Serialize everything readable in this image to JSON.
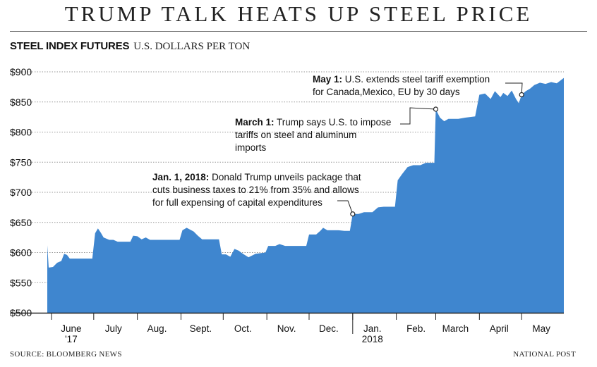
{
  "title": "TRUMP TALK HEATS UP STEEL PRICE",
  "subtitle": "STEEL INDEX FUTURES",
  "unit": "U.S. DOLLARS PER TON",
  "source": "SOURCE: BLOOMBERG NEWS",
  "credit": "NATIONAL POST",
  "colors": {
    "area": "#3f86cf",
    "axis": "#222222",
    "grid": "#999999"
  },
  "chart_data": {
    "type": "area",
    "title": "TRUMP TALK HEATS UP STEEL PRICE",
    "ylabel": "U.S. DOLLARS PER TON",
    "ylim": [
      500,
      900
    ],
    "yticks": [
      500,
      550,
      600,
      650,
      700,
      750,
      800,
      850,
      900
    ],
    "ytick_labels": [
      "$500",
      "$550",
      "$600",
      "$650",
      "$700",
      "$750",
      "$800",
      "$850",
      "$900"
    ],
    "xlim": [
      "2017-05-29",
      "2018-05-31"
    ],
    "month_labels": [
      {
        "date": "2017-06-15",
        "label": "June",
        "sub": "'17"
      },
      {
        "date": "2017-07-15",
        "label": "July"
      },
      {
        "date": "2017-08-15",
        "label": "Aug."
      },
      {
        "date": "2017-09-15",
        "label": "Sept."
      },
      {
        "date": "2017-10-15",
        "label": "Oct."
      },
      {
        "date": "2017-11-15",
        "label": "Nov."
      },
      {
        "date": "2017-12-15",
        "label": "Dec."
      },
      {
        "date": "2018-01-15",
        "label": "Jan.",
        "sub": "2018"
      },
      {
        "date": "2018-02-15",
        "label": "Feb."
      },
      {
        "date": "2018-03-15",
        "label": "March"
      },
      {
        "date": "2018-04-15",
        "label": "April"
      },
      {
        "date": "2018-05-15",
        "label": "May"
      }
    ],
    "grid": true,
    "series": [
      {
        "points": [
          [
            "2017-05-29",
            612
          ],
          [
            "2017-05-30",
            575
          ],
          [
            "2017-06-02",
            576
          ],
          [
            "2017-06-05",
            583
          ],
          [
            "2017-06-08",
            586
          ],
          [
            "2017-06-10",
            598
          ],
          [
            "2017-06-12",
            596
          ],
          [
            "2017-06-14",
            590
          ],
          [
            "2017-06-30",
            590
          ],
          [
            "2017-07-02",
            632
          ],
          [
            "2017-07-04",
            640
          ],
          [
            "2017-07-06",
            633
          ],
          [
            "2017-07-08",
            625
          ],
          [
            "2017-07-12",
            621
          ],
          [
            "2017-07-15",
            621
          ],
          [
            "2017-07-18",
            618
          ],
          [
            "2017-07-27",
            618
          ],
          [
            "2017-07-29",
            628
          ],
          [
            "2017-08-01",
            627
          ],
          [
            "2017-08-04",
            622
          ],
          [
            "2017-08-07",
            625
          ],
          [
            "2017-08-10",
            621
          ],
          [
            "2017-08-31",
            621
          ],
          [
            "2017-09-02",
            637
          ],
          [
            "2017-09-05",
            641
          ],
          [
            "2017-09-10",
            635
          ],
          [
            "2017-09-13",
            628
          ],
          [
            "2017-09-16",
            622
          ],
          [
            "2017-09-28",
            622
          ],
          [
            "2017-09-30",
            597
          ],
          [
            "2017-10-03",
            597
          ],
          [
            "2017-10-06",
            593
          ],
          [
            "2017-10-09",
            606
          ],
          [
            "2017-10-12",
            603
          ],
          [
            "2017-10-15",
            598
          ],
          [
            "2017-10-19",
            592
          ],
          [
            "2017-10-24",
            598
          ],
          [
            "2017-10-31",
            600
          ],
          [
            "2017-11-02",
            611
          ],
          [
            "2017-11-07",
            611
          ],
          [
            "2017-11-10",
            614
          ],
          [
            "2017-11-14",
            611
          ],
          [
            "2017-11-29",
            611
          ],
          [
            "2017-12-01",
            630
          ],
          [
            "2017-12-06",
            630
          ],
          [
            "2017-12-09",
            636
          ],
          [
            "2017-12-11",
            641
          ],
          [
            "2017-12-14",
            637
          ],
          [
            "2017-12-18",
            637
          ],
          [
            "2017-12-22",
            637
          ],
          [
            "2017-12-26",
            636
          ],
          [
            "2017-12-30",
            636
          ],
          [
            "2018-01-01",
            664
          ],
          [
            "2018-01-05",
            664
          ],
          [
            "2018-01-09",
            667
          ],
          [
            "2018-01-15",
            667
          ],
          [
            "2018-01-19",
            675
          ],
          [
            "2018-01-23",
            676
          ],
          [
            "2018-01-31",
            676
          ],
          [
            "2018-02-02",
            720
          ],
          [
            "2018-02-05",
            730
          ],
          [
            "2018-02-09",
            742
          ],
          [
            "2018-02-13",
            745
          ],
          [
            "2018-02-18",
            745
          ],
          [
            "2018-02-22",
            749
          ],
          [
            "2018-02-28",
            749
          ],
          [
            "2018-03-01",
            838
          ],
          [
            "2018-03-04",
            824
          ],
          [
            "2018-03-07",
            818
          ],
          [
            "2018-03-10",
            822
          ],
          [
            "2018-03-17",
            822
          ],
          [
            "2018-03-22",
            824
          ],
          [
            "2018-03-29",
            826
          ],
          [
            "2018-04-01",
            862
          ],
          [
            "2018-04-05",
            864
          ],
          [
            "2018-04-09",
            855
          ],
          [
            "2018-04-12",
            868
          ],
          [
            "2018-04-16",
            858
          ],
          [
            "2018-04-18",
            865
          ],
          [
            "2018-04-21",
            860
          ],
          [
            "2018-04-24",
            869
          ],
          [
            "2018-04-27",
            855
          ],
          [
            "2018-04-29",
            848
          ],
          [
            "2018-05-01",
            862
          ],
          [
            "2018-05-04",
            868
          ],
          [
            "2018-05-07",
            872
          ],
          [
            "2018-05-10",
            878
          ],
          [
            "2018-05-14",
            882
          ],
          [
            "2018-05-18",
            880
          ],
          [
            "2018-05-22",
            883
          ],
          [
            "2018-05-26",
            881
          ],
          [
            "2018-05-31",
            890
          ]
        ]
      }
    ],
    "annotations": [
      {
        "date": "2018-01-01",
        "value": 664,
        "bold": "Jan. 1, 2018:",
        "lines": [
          " Donald Trump unveils package that",
          "cuts business taxes to 21% from 35% and allows",
          "for full expensing of capital expenditures"
        ]
      },
      {
        "date": "2018-03-01",
        "value": 838,
        "bold": "March 1:",
        "lines": [
          " Trump says U.S. to impose",
          "tariffs on steel and aluminum",
          "imports"
        ]
      },
      {
        "date": "2018-05-01",
        "value": 862,
        "bold": "May 1:",
        "lines": [
          " U.S. extends steel tariff exemption",
          "for Canada,Mexico, EU by 30 days"
        ]
      }
    ]
  }
}
